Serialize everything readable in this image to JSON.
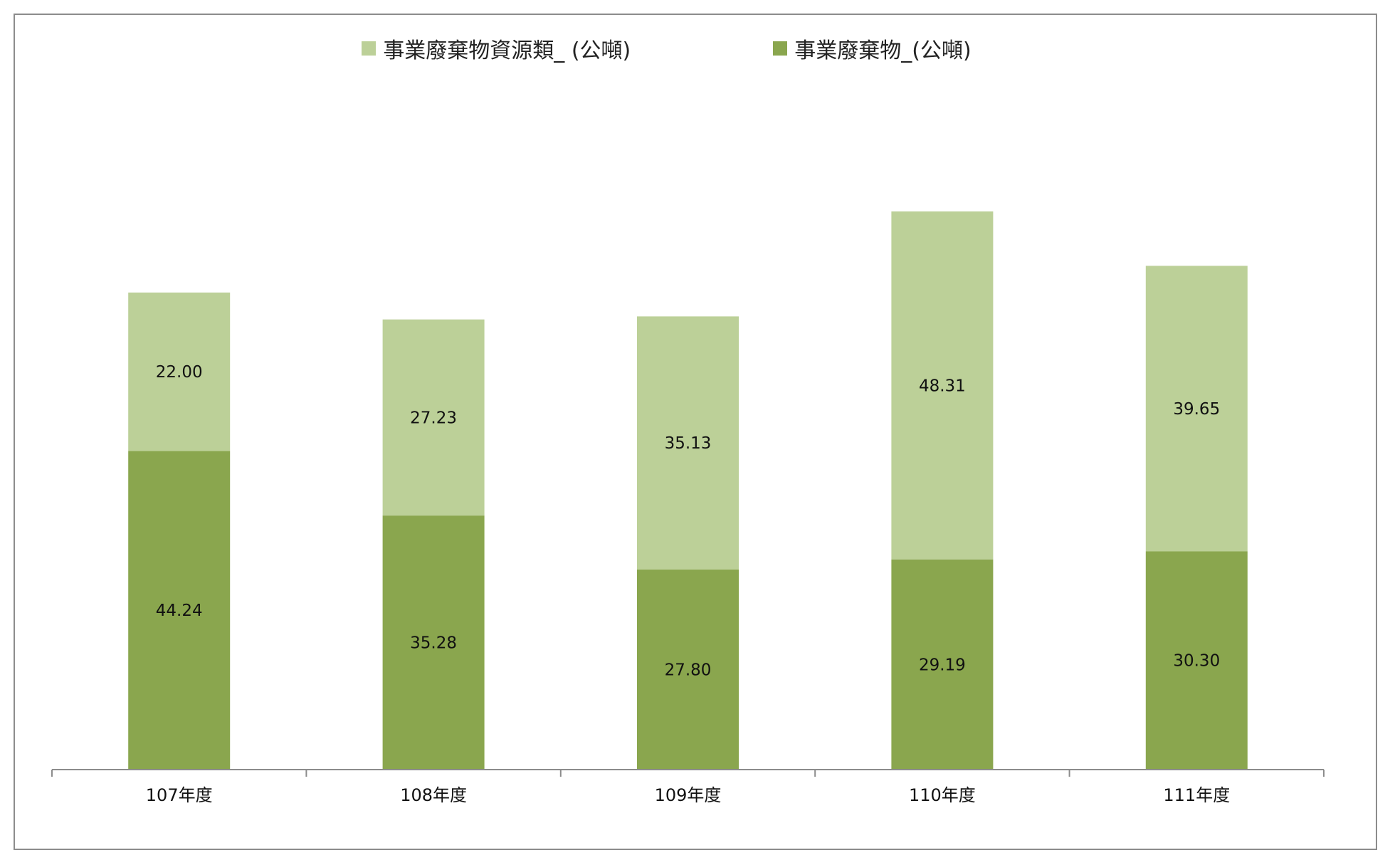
{
  "chart_data": {
    "type": "bar",
    "stacked": true,
    "title": "",
    "xlabel": "",
    "ylabel": "",
    "categories": [
      "107年度",
      "108年度",
      "109年度",
      "110年度",
      "111年度"
    ],
    "series": [
      {
        "name": "事業廢棄物_(公噸)",
        "color": "#8aa64e",
        "values": [
          44.24,
          35.28,
          27.8,
          29.19,
          30.3
        ],
        "labels": [
          "44.24",
          "35.28",
          "27.80",
          "29.19",
          "30.30"
        ]
      },
      {
        "name": "事業廢棄物資源類_ (公噸)",
        "color": "#bcd098",
        "values": [
          22.0,
          27.23,
          35.13,
          48.31,
          39.65
        ],
        "labels": [
          "22.00",
          "27.23",
          "35.13",
          "48.31",
          "39.65"
        ]
      }
    ],
    "legend_order": [
      1,
      0
    ],
    "legend_position": "top",
    "ylim": [
      0,
      95
    ],
    "grid": false
  }
}
